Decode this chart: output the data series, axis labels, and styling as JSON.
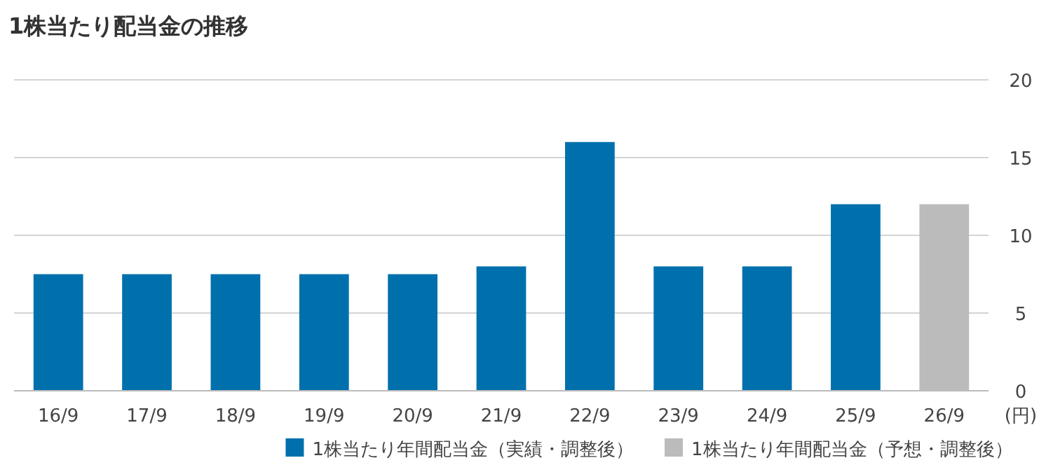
{
  "chart_data": {
    "type": "bar",
    "title": "1株当たり配当金の推移",
    "ylabel": "(円)",
    "categories": [
      "16/9",
      "17/9",
      "18/9",
      "19/9",
      "20/9",
      "21/9",
      "22/9",
      "23/9",
      "24/9",
      "25/9",
      "26/9"
    ],
    "series": [
      {
        "name": "1株当たり年間配当金（実績・調整後）",
        "color": "#0070ad",
        "values": [
          7.5,
          7.5,
          7.5,
          7.5,
          7.5,
          8,
          16,
          8,
          8,
          12,
          null
        ]
      },
      {
        "name": "1株当たり年間配当金（予想・調整後）",
        "color": "#bbbbbb",
        "values": [
          null,
          null,
          null,
          null,
          null,
          null,
          null,
          null,
          null,
          null,
          12
        ]
      }
    ],
    "ylim": [
      0,
      20
    ],
    "yticks": [
      0,
      5,
      10,
      15,
      20
    ],
    "grid": "y",
    "legend": "bottom"
  }
}
